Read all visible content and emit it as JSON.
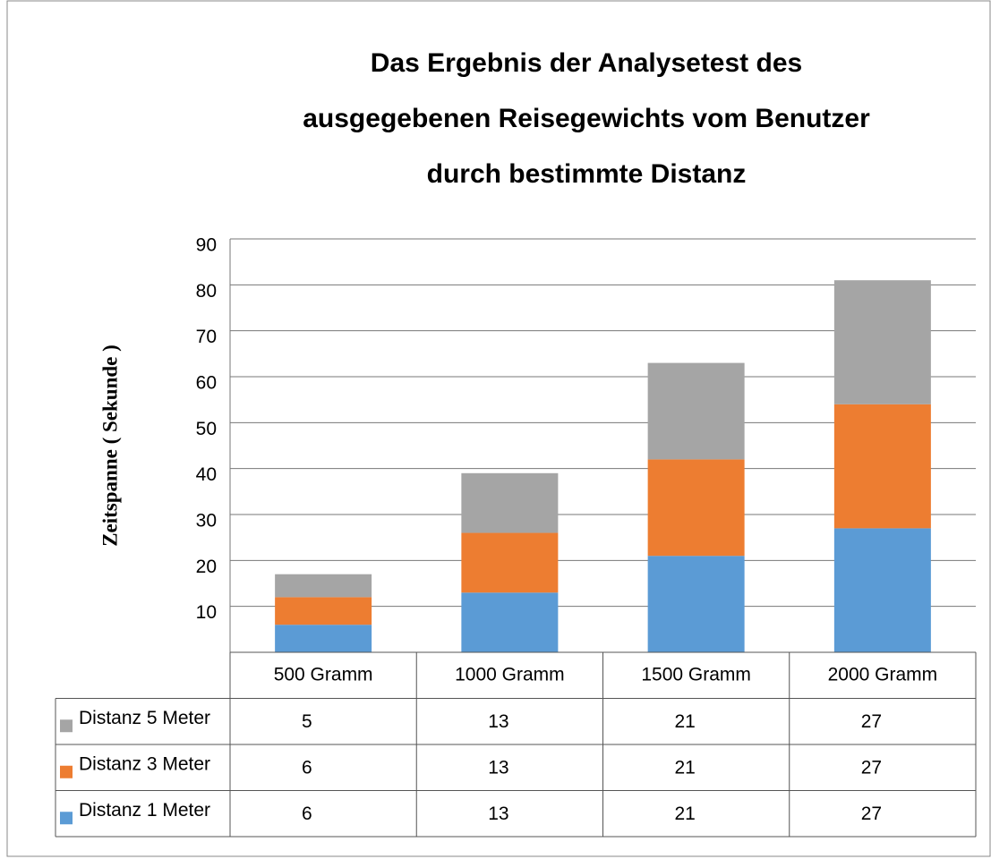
{
  "chart_data": {
    "type": "stacked_bar",
    "title": "Das Ergebnis der Analysetest des\nausgegebenen Reisegewichts vom Benutzer\ndurch bestimmte Distanz",
    "y_label": "Zeitspanne ( Sekunde )",
    "categories": [
      "500 Gramm",
      "1000 Gramm",
      "1500 Gramm",
      "2000 Gramm"
    ],
    "series": [
      {
        "name": "Distanz 1 Meter",
        "color": "#5b9bd5",
        "values": [
          6,
          13,
          21,
          27
        ]
      },
      {
        "name": "Distanz 3 Meter",
        "color": "#ed7d31",
        "values": [
          6,
          13,
          21,
          27
        ]
      },
      {
        "name": "Distanz 5 Meter",
        "color": "#a5a5a5",
        "values": [
          5,
          13,
          21,
          27
        ]
      }
    ],
    "ylim": [
      0,
      90
    ],
    "yticks": [
      10,
      20,
      30,
      40,
      50,
      60,
      70,
      80,
      90
    ],
    "grid": true,
    "data_table": true
  }
}
